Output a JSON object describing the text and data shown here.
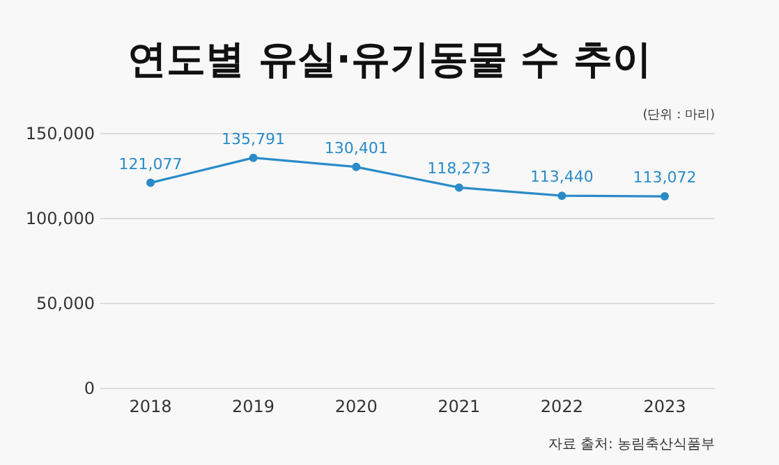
{
  "chart_data": {
    "type": "line",
    "title": "연도별 유실·유기동물 수 추이",
    "categories": [
      "2018",
      "2019",
      "2020",
      "2021",
      "2022",
      "2023"
    ],
    "series": [
      {
        "color": "#2a8bc8",
        "values": [
          121077,
          135791,
          130401,
          118273,
          113440,
          113072
        ],
        "value_labels": [
          "121,077",
          "135,791",
          "130,401",
          "118,273",
          "113,440",
          "113,072"
        ]
      }
    ],
    "ylim": [
      0,
      150000
    ],
    "yticks": [
      {
        "value": 0,
        "label": "0"
      },
      {
        "value": 50000,
        "label": "50,000"
      },
      {
        "value": 100000,
        "label": "100,000"
      },
      {
        "value": 150000,
        "label": "150,000"
      }
    ],
    "grid": "y",
    "marker": "circle",
    "line_style": "solid",
    "annotations": [
      "(단위 : 마리)",
      "자료 출처: 농림축산식품부"
    ]
  }
}
